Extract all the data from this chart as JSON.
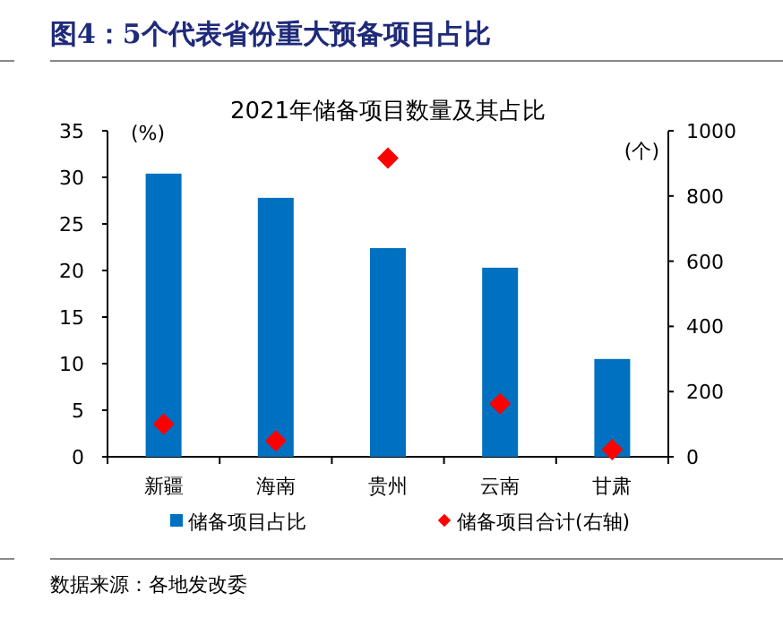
{
  "chart_data": {
    "type": "bar",
    "title": "图4：5个代表省份重大预备项目占比",
    "subtitle": "2021年储备项目数量及其占比",
    "ylabel": "(%)",
    "y2label": "(个)",
    "categories": [
      "新疆",
      "海南",
      "贵州",
      "云南",
      "甘肃"
    ],
    "series": [
      {
        "name": "储备项目占比",
        "color": "#0070c0",
        "values": [
          30.4,
          27.8,
          22.4,
          20.3,
          10.5
        ]
      },
      {
        "name": "储备项目合计(右轴)",
        "type": "scatter",
        "axis": "y2",
        "marker": "diamond",
        "color": "#ff0000",
        "values": [
          100,
          49,
          916,
          163,
          22
        ]
      }
    ],
    "ylim": [
      0,
      35
    ],
    "yticks": [
      0,
      5,
      10,
      15,
      20,
      25,
      30,
      35
    ],
    "y2lim": [
      0,
      1000
    ],
    "y2ticks": [
      0,
      200,
      400,
      600,
      800,
      1000
    ],
    "legend": "bottom",
    "grid": false,
    "annotations": [
      "数据来源：各地发改委"
    ]
  }
}
